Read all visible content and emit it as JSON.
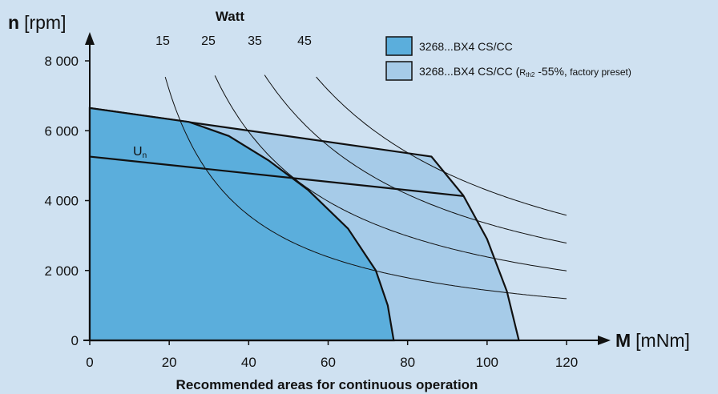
{
  "chart_data": {
    "type": "area",
    "title": "",
    "caption": "Recommended areas for continuous operation",
    "x_axis": {
      "symbol": "M",
      "unit": "[mNm]",
      "range": [
        0,
        120
      ],
      "ticks": [
        "0",
        "20",
        "40",
        "60",
        "80",
        "100",
        "120"
      ]
    },
    "y_axis": {
      "symbol": "n",
      "unit": "[rpm]",
      "range": [
        0,
        8000
      ],
      "ticks": [
        "0",
        "2 000",
        "4 000",
        "6 000",
        "8 000"
      ]
    },
    "power_header": "Watt",
    "power_curves": [
      {
        "label": "15",
        "watts": 15
      },
      {
        "label": "25",
        "watts": 25
      },
      {
        "label": "35",
        "watts": 35
      },
      {
        "label": "45",
        "watts": 45
      }
    ],
    "regions": [
      {
        "name": "3268...BX4 CS/CC",
        "color": "#5baedc",
        "points": [
          [
            0,
            6650
          ],
          [
            25,
            6250
          ],
          [
            35,
            5850
          ],
          [
            45,
            5150
          ],
          [
            55,
            4300
          ],
          [
            65,
            3200
          ],
          [
            72,
            2000
          ],
          [
            75,
            1000
          ],
          [
            76.5,
            0
          ]
        ]
      },
      {
        "name_main": "3268...BX4 CS/CC (",
        "name_sub_base": "R",
        "name_sub": "th2",
        "name_tail": " -55%,",
        "name_note": " factory preset)",
        "color": "#a6cbe8",
        "points": [
          [
            0,
            6650
          ],
          [
            86,
            5260
          ],
          [
            94,
            4150
          ],
          [
            100,
            2900
          ],
          [
            105,
            1400
          ],
          [
            108,
            0
          ]
        ]
      }
    ],
    "voltage_line": {
      "label_base": "U",
      "label_sub": "n",
      "points": [
        [
          0,
          5260
        ],
        [
          94,
          4130
        ]
      ]
    },
    "legend": {
      "position": "top-right"
    }
  }
}
